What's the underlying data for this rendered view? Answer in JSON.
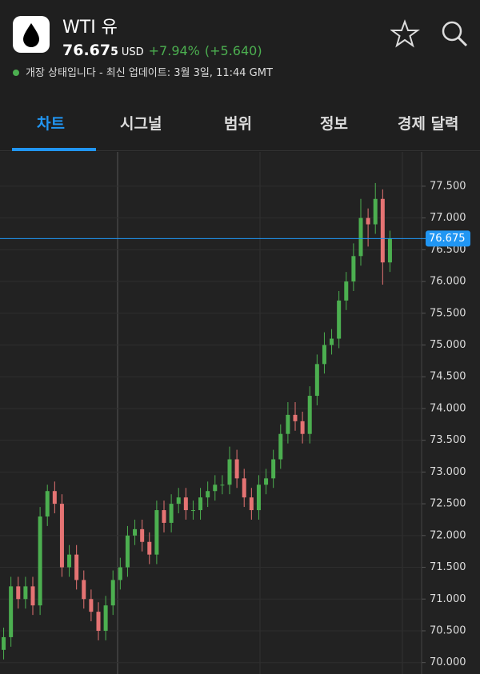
{
  "header": {
    "title": "WTI 유",
    "price_main": "76.67",
    "price_small": "5",
    "currency": "USD",
    "change_pct": "+7.94%",
    "change": "(+5.640)",
    "status": "개장 상태입니다 - 최신 업데이트: 3월 3일, 11:44 GMT"
  },
  "tabs": [
    "차트",
    "시그널",
    "범위",
    "정보",
    "경제 달력"
  ],
  "chart_data": {
    "type": "candlestick",
    "up_color": "#4caf50",
    "down_color": "#e57373",
    "last_price": 76.675,
    "last_color": "#2196f3",
    "grid": true,
    "ylim": [
      69.82,
      78.04
    ],
    "yticks": [
      {
        "value": 70,
        "label": "70.000"
      },
      {
        "value": 70.5,
        "label": "70.500"
      },
      {
        "value": 71,
        "label": "71.000"
      },
      {
        "value": 71.5,
        "label": "71.500"
      },
      {
        "value": 72,
        "label": "72.000"
      },
      {
        "value": 72.5,
        "label": "72.500"
      },
      {
        "value": 73,
        "label": "73.000"
      },
      {
        "value": 73.5,
        "label": "73.500"
      },
      {
        "value": 74,
        "label": "74.000"
      },
      {
        "value": 74.5,
        "label": "74.500"
      },
      {
        "value": 75,
        "label": "75.000"
      },
      {
        "value": 75.5,
        "label": "75.500"
      },
      {
        "value": 76,
        "label": "76.000"
      },
      {
        "value": 76.5,
        "label": "76.500"
      },
      {
        "value": 77,
        "label": "77.000"
      },
      {
        "value": 77.5,
        "label": "77.500"
      }
    ],
    "open": [
      70.2,
      70.4,
      71.2,
      71.0,
      71.2,
      70.9,
      72.3,
      72.7,
      72.5,
      71.5,
      71.7,
      71.3,
      71.0,
      70.8,
      70.5,
      70.9,
      71.3,
      71.5,
      72.0,
      72.1,
      71.9,
      71.7,
      72.4,
      72.2,
      72.5,
      72.6,
      72.4,
      72.4,
      72.6,
      72.7,
      72.8,
      72.8,
      73.2,
      72.9,
      72.6,
      72.4,
      72.8,
      72.9,
      73.2,
      73.6,
      73.9,
      73.8,
      73.6,
      74.2,
      74.7,
      75.0,
      75.1,
      75.7,
      76.0,
      76.4,
      77.0,
      76.9,
      77.3,
      76.3
    ],
    "high": [
      70.55,
      71.35,
      71.35,
      71.35,
      71.35,
      72.45,
      72.8,
      72.85,
      72.65,
      71.85,
      71.85,
      71.45,
      71.15,
      70.95,
      71.05,
      71.45,
      71.65,
      72.15,
      72.25,
      72.25,
      72.05,
      72.55,
      72.55,
      72.65,
      72.75,
      72.75,
      72.55,
      72.75,
      72.85,
      72.95,
      72.95,
      73.4,
      73.35,
      73.05,
      72.75,
      72.95,
      73.05,
      73.35,
      73.75,
      74.1,
      74.1,
      73.95,
      74.35,
      74.85,
      75.2,
      75.25,
      75.85,
      76.15,
      76.6,
      77.3,
      77.15,
      77.55,
      77.45,
      76.8
    ],
    "low": [
      70.05,
      70.25,
      70.85,
      70.85,
      70.75,
      70.75,
      72.15,
      72.35,
      71.35,
      71.35,
      71.15,
      70.85,
      70.65,
      70.35,
      70.35,
      70.75,
      71.15,
      71.35,
      71.85,
      71.75,
      71.55,
      71.55,
      72.05,
      72.05,
      72.35,
      72.25,
      72.25,
      72.25,
      72.45,
      72.55,
      72.65,
      72.65,
      72.75,
      72.45,
      72.25,
      72.25,
      72.65,
      72.75,
      73.05,
      73.45,
      73.65,
      73.45,
      73.45,
      74.05,
      74.55,
      74.85,
      74.95,
      75.55,
      75.85,
      76.25,
      76.55,
      76.75,
      75.95,
      76.15
    ],
    "close": [
      70.4,
      71.2,
      71.0,
      71.2,
      70.9,
      72.3,
      72.7,
      72.5,
      71.5,
      71.7,
      71.3,
      71.0,
      70.8,
      70.5,
      70.9,
      71.3,
      71.5,
      72.0,
      72.1,
      71.9,
      71.7,
      72.4,
      72.2,
      72.5,
      72.6,
      72.4,
      72.4,
      72.6,
      72.7,
      72.8,
      72.8,
      73.2,
      72.9,
      72.6,
      72.4,
      72.8,
      72.9,
      73.2,
      73.6,
      73.9,
      73.8,
      73.6,
      74.2,
      74.7,
      75.0,
      75.1,
      75.7,
      76.0,
      76.4,
      77.0,
      76.9,
      77.3,
      76.3,
      76.675
    ]
  }
}
